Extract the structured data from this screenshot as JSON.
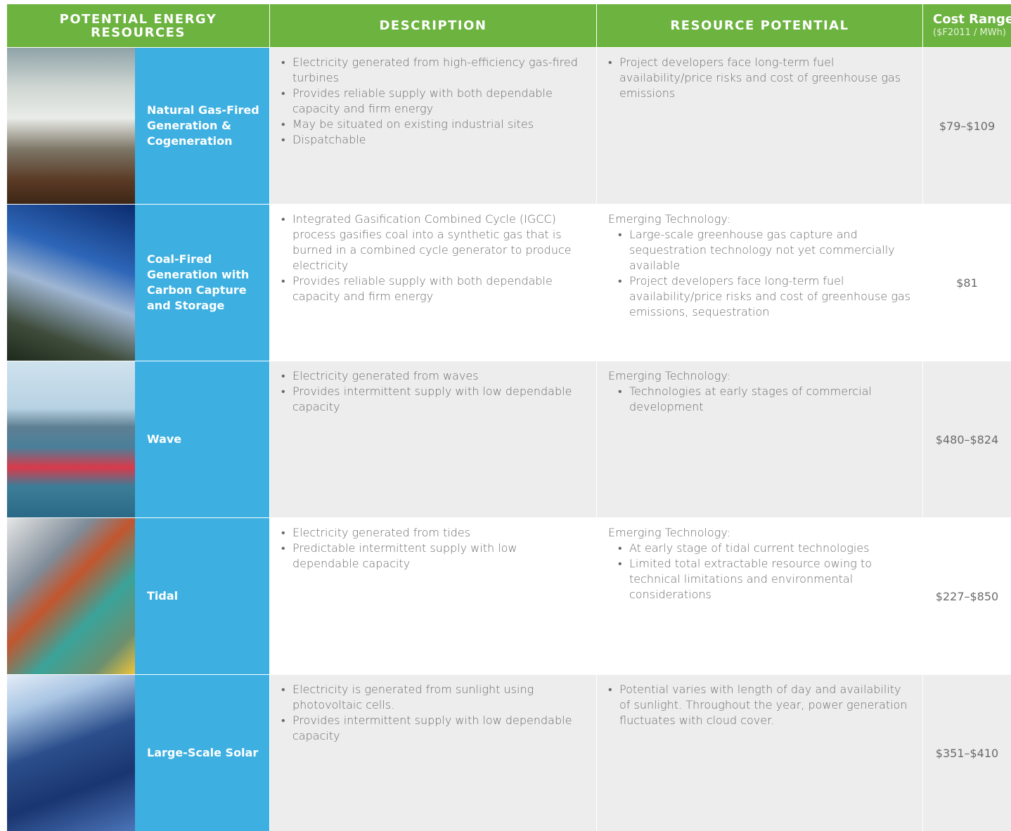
{
  "table": {
    "header": {
      "resources": "POTENTIAL ENERGY RESOURCES",
      "description": "DESCRIPTION",
      "potential": "RESOURCE POTENTIAL",
      "cost": "Cost Range",
      "cost_unit": "($F2011 / MWh)"
    },
    "rows": [
      {
        "name": "Natural Gas-Fired Generation & Cogeneration",
        "description": [
          "Electricity generated from high-efficiency gas-fired turbines",
          "Provides reliable supply with both dependable capacity and firm energy",
          "May be situated on existing industrial sites",
          "Dispatchable"
        ],
        "potential": {
          "bullets": [
            "Project developers face long-term fuel availability/price risks and cost of greenhouse gas emissions"
          ]
        },
        "cost": "$79–$109"
      },
      {
        "name": "Coal-Fired Generation with Carbon Capture and Storage",
        "description": [
          "Integrated Gasification Combined Cycle (IGCC) process gasifies coal into a synthetic gas that is burned in a combined cycle generator to produce electricity",
          "Provides reliable supply with both dependable capacity and firm energy"
        ],
        "potential": {
          "intro": "Emerging Technology:",
          "bullets": [
            "Large-scale greenhouse gas capture and sequestration technology not yet commercially available",
            "Project developers face long-term fuel availability/price risks and cost of greenhouse gas emissions, sequestration"
          ]
        },
        "cost": "$81"
      },
      {
        "name": "Wave",
        "description": [
          "Electricity generated from waves",
          "Provides intermittent supply with low dependable capacity"
        ],
        "potential": {
          "intro": "Emerging Technology:",
          "bullets": [
            "Technologies at early stages of commercial development"
          ]
        },
        "cost": "$480–$824"
      },
      {
        "name": "Tidal",
        "description": [
          "Electricity generated from tides",
          "Predictable intermittent supply with low dependable capacity"
        ],
        "potential": {
          "intro": "Emerging Technology:",
          "bullets": [
            "At early stage of tidal current technologies",
            "Limited total extractable resource owing to technical limitations and environmental considerations"
          ]
        },
        "cost": "$227–$850"
      },
      {
        "name": "Large-Scale Solar",
        "description": [
          "Electricity is generated from sunlight using photovoltaic cells.",
          "Provides intermittent supply with low dependable capacity"
        ],
        "potential": {
          "bullets": [
            "Potential varies with length of day and availability of sunlight. Throughout the year, power generation fluctuates with cloud cover."
          ]
        },
        "cost": "$351–$410"
      }
    ]
  }
}
